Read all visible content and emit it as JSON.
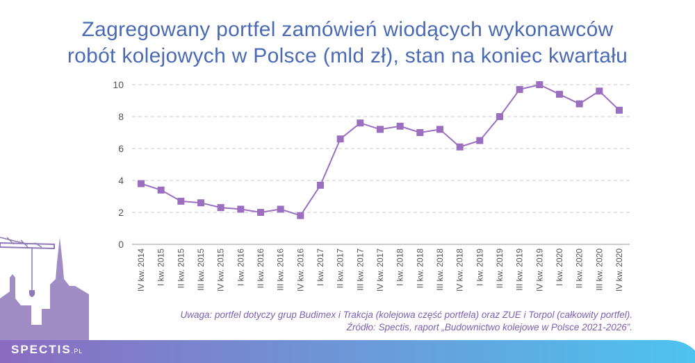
{
  "title": {
    "line1": "Zagregowany portfel zamówień wiodących wykonawców",
    "line2": "robót kolejowych w Polsce (mld zł), stan na koniec kwartału"
  },
  "notes": {
    "note": "Uwaga: portfel dotyczy grup Budimex i Trakcja (kolejowa część portfela) oraz ZUE i Torpol (całkowity portfel).",
    "source": "Źródło: Spectis, raport „Budownictwo kolejowe w Polsce 2021-2026”."
  },
  "logo": {
    "name": "SPECTIS",
    "suffix": ".PL"
  },
  "colors": {
    "title": "#4a6ab3",
    "series": "#9b6fc0",
    "note": "#7a5fb0",
    "grid": "#c8c8c8",
    "footer_start": "#8b6cc0",
    "footer_end": "#4dc3f0",
    "skyline": "#8e79b8"
  },
  "chart_data": {
    "type": "line",
    "categories": [
      "IV kw. 2014",
      "I kw. 2015",
      "II kw. 2015",
      "III kw. 2015",
      "IV kw. 2015",
      "I kw. 2016",
      "II kw. 2016",
      "III kw. 2016",
      "IV kw. 2016",
      "I kw. 2017",
      "II kw. 2017",
      "III kw. 2017",
      "IV kw. 2017",
      "I kw. 2018",
      "II kw. 2018",
      "III kw. 2018",
      "IV kw. 2018",
      "I kw. 2019",
      "II kw. 2019",
      "III kw. 2019",
      "IV kw. 2019",
      "I kw. 2020",
      "II kw. 2020",
      "III kw. 2020",
      "IV kw. 2020"
    ],
    "values": [
      3.8,
      3.4,
      2.7,
      2.6,
      2.3,
      2.2,
      2.0,
      2.2,
      1.8,
      3.7,
      6.6,
      7.6,
      7.2,
      7.4,
      7.0,
      7.2,
      6.1,
      6.5,
      8.0,
      9.7,
      10.0,
      9.4,
      8.8,
      9.6,
      8.4
    ],
    "yticks": [
      0,
      2,
      4,
      6,
      8,
      10
    ],
    "ylim": [
      0,
      10
    ],
    "grid": true,
    "marker": "square"
  }
}
